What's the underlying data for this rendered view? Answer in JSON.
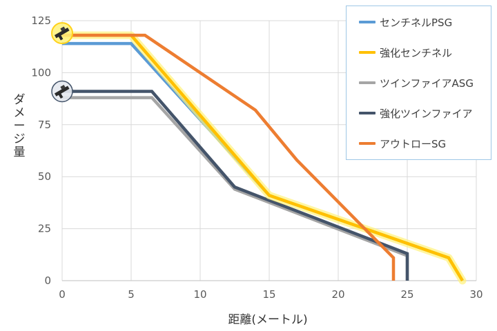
{
  "chart_data": {
    "type": "line",
    "xlabel": "距離(メートル)",
    "ylabel": "ダメージ量",
    "xlim": [
      0,
      30
    ],
    "ylim": [
      0,
      125
    ],
    "xticks": [
      0,
      5,
      10,
      15,
      20,
      25,
      30
    ],
    "yticks": [
      0,
      25,
      50,
      75,
      100,
      125
    ],
    "grid": "vertical and horizontal",
    "legend_position": "top-right",
    "series": [
      {
        "name": "センチネルPSG",
        "color": "#5b9bd5",
        "x": [
          0,
          5,
          15,
          28,
          29
        ],
        "y": [
          114,
          114,
          41,
          11,
          0
        ]
      },
      {
        "name": "強化センチネル",
        "color": "#ffc000",
        "highlight": true,
        "x": [
          0,
          5,
          15,
          28,
          29
        ],
        "y": [
          118,
          118,
          41,
          11,
          0
        ]
      },
      {
        "name": "ツインファイアASG",
        "color": "#a5a5a5",
        "x": [
          0,
          6.5,
          12.5,
          25,
          25
        ],
        "y": [
          88,
          88,
          44,
          12,
          0
        ]
      },
      {
        "name": "強化ツインファイア",
        "color": "#44546a",
        "x": [
          0,
          6.5,
          12.5,
          25,
          25
        ],
        "y": [
          91,
          91,
          45,
          13,
          0
        ]
      },
      {
        "name": "アウトローSG",
        "color": "#ed7d31",
        "x": [
          0,
          6,
          14,
          17,
          24,
          24
        ],
        "y": [
          118,
          118,
          82,
          58,
          11,
          0
        ]
      }
    ],
    "markers": [
      {
        "name": "sentinel-weapon-icon",
        "x": 0,
        "y": 119
      },
      {
        "name": "twinfire-weapon-icon",
        "x": 0,
        "y": 91
      }
    ]
  }
}
